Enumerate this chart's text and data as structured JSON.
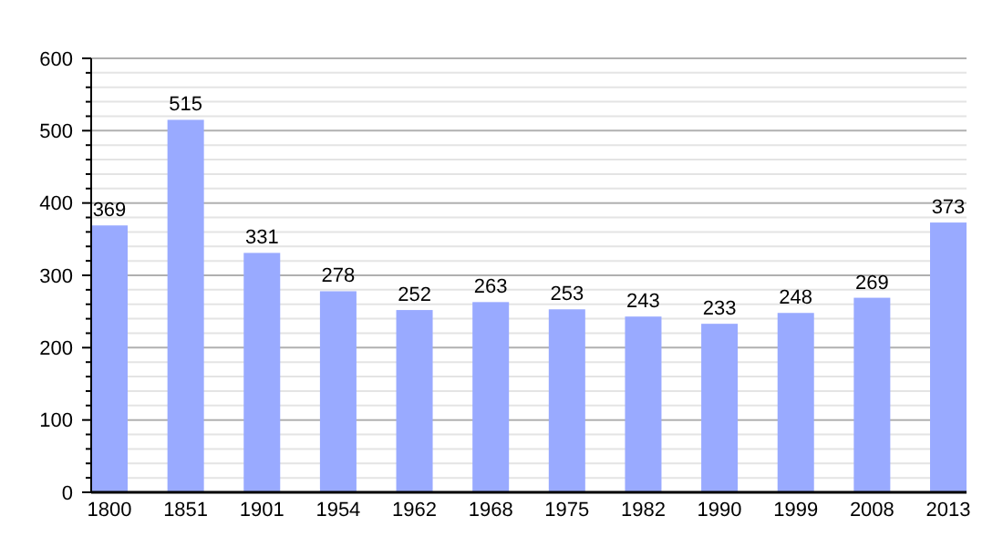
{
  "chart_data": {
    "type": "bar",
    "categories": [
      "1800",
      "1851",
      "1901",
      "1954",
      "1962",
      "1968",
      "1975",
      "1982",
      "1990",
      "1999",
      "2008",
      "2013"
    ],
    "values": [
      369,
      515,
      331,
      278,
      252,
      263,
      253,
      243,
      233,
      248,
      269,
      373
    ],
    "color": "#99aaff",
    "data_labels": true,
    "grid": "y",
    "ylim": [
      0,
      600
    ],
    "yticks": [
      0,
      {
        "value": 20,
        "label": null
      },
      {
        "value": 40,
        "label": null
      },
      {
        "value": 60,
        "label": null
      },
      {
        "value": 80,
        "label": null
      },
      100,
      {
        "value": 120,
        "label": null
      },
      {
        "value": 140,
        "label": null
      },
      {
        "value": 160,
        "label": null
      },
      {
        "value": 180,
        "label": null
      },
      200,
      {
        "value": 220,
        "label": null
      },
      {
        "value": 240,
        "label": null
      },
      {
        "value": 260,
        "label": null
      },
      {
        "value": 280,
        "label": null
      },
      300,
      {
        "value": 320,
        "label": null
      },
      {
        "value": 340,
        "label": null
      },
      {
        "value": 360,
        "label": null
      },
      {
        "value": 380,
        "label": null
      },
      400,
      {
        "value": 420,
        "label": null
      },
      {
        "value": 440,
        "label": null
      },
      {
        "value": 460,
        "label": null
      },
      {
        "value": 480,
        "label": null
      },
      500,
      {
        "value": 520,
        "label": null
      },
      {
        "value": 540,
        "label": null
      },
      {
        "value": 560,
        "label": null
      },
      {
        "value": 580,
        "label": null
      },
      600
    ]
  }
}
